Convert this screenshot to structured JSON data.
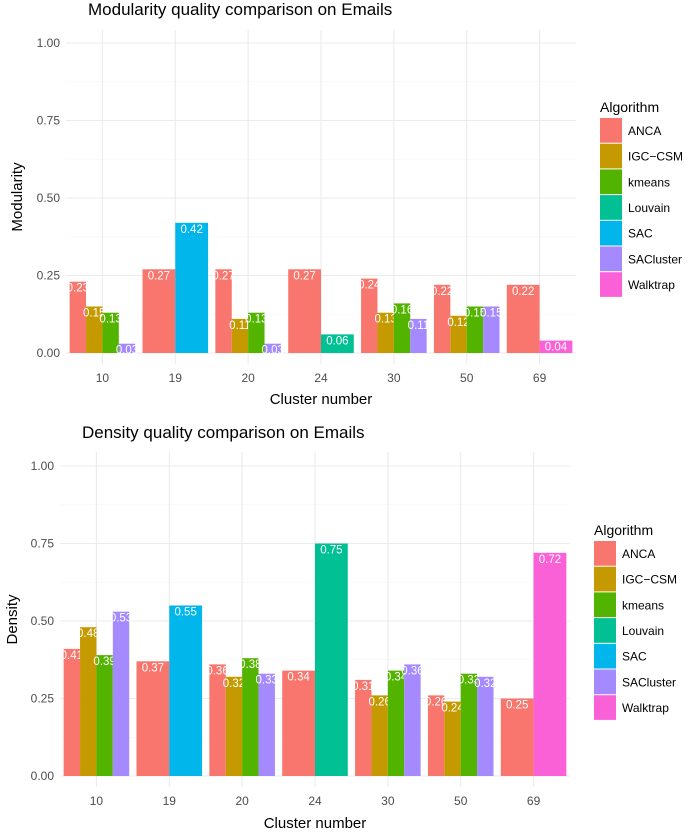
{
  "chart_data": [
    {
      "type": "bar",
      "title": "Modularity quality comparison on Emails",
      "xlabel": "Cluster number",
      "ylabel": "Modularity",
      "ylim": [
        0,
        1
      ],
      "yticks": [
        "0.00",
        "0.25",
        "0.50",
        "0.75",
        "1.00"
      ],
      "categories": [
        "10",
        "19",
        "20",
        "24",
        "30",
        "50",
        "69"
      ],
      "legend_title": "Algorithm",
      "legend_position": "right",
      "grid": true,
      "series": [
        {
          "name": "ANCA",
          "color": "#F8766D",
          "values": [
            0.23,
            0.27,
            0.27,
            0.27,
            0.24,
            0.22,
            0.22
          ],
          "labels": [
            "0.23",
            "0.27",
            "0.27",
            "0.27",
            "0.24",
            "0.22",
            "0.22"
          ]
        },
        {
          "name": "IGC−CSM",
          "color": "#C49A00",
          "values": [
            0.15,
            null,
            0.11,
            null,
            0.13,
            0.12,
            null
          ],
          "labels": [
            "0.15",
            null,
            "0.11",
            null,
            "0.13",
            "0.12",
            null
          ]
        },
        {
          "name": "kmeans",
          "color": "#53B400",
          "values": [
            0.13,
            null,
            0.13,
            null,
            0.16,
            0.15,
            null
          ],
          "labels": [
            "0.13",
            null,
            "0.13",
            null,
            "0.16",
            "0.15",
            null
          ]
        },
        {
          "name": "Louvain",
          "color": "#00C094",
          "values": [
            null,
            null,
            null,
            0.06,
            null,
            null,
            null
          ],
          "labels": [
            null,
            null,
            null,
            "0.06",
            null,
            null,
            null
          ]
        },
        {
          "name": "SAC",
          "color": "#00B6EB",
          "values": [
            null,
            0.42,
            null,
            null,
            null,
            null,
            null
          ],
          "labels": [
            null,
            "0.42",
            null,
            null,
            null,
            null,
            null
          ]
        },
        {
          "name": "SACluster",
          "color": "#A58AFF",
          "values": [
            0.03,
            null,
            0.03,
            null,
            0.11,
            0.15,
            null
          ],
          "labels": [
            "0.03",
            null,
            "0.03",
            null,
            "0.11",
            "0.15",
            null
          ]
        },
        {
          "name": "Walktrap",
          "color": "#FB61D7",
          "values": [
            null,
            null,
            null,
            null,
            null,
            null,
            0.04
          ],
          "labels": [
            null,
            null,
            null,
            null,
            null,
            null,
            "0.04"
          ]
        }
      ]
    },
    {
      "type": "bar",
      "title": "Density quality comparison on Emails",
      "xlabel": "Cluster number",
      "ylabel": "Density",
      "ylim": [
        0,
        1
      ],
      "yticks": [
        "0.00",
        "0.25",
        "0.50",
        "0.75",
        "1.00"
      ],
      "categories": [
        "10",
        "19",
        "20",
        "24",
        "30",
        "50",
        "69"
      ],
      "legend_title": "Algorithm",
      "legend_position": "right",
      "grid": true,
      "series": [
        {
          "name": "ANCA",
          "color": "#F8766D",
          "values": [
            0.41,
            0.37,
            0.36,
            0.34,
            0.31,
            0.26,
            0.25
          ],
          "labels": [
            "0.41",
            "0.37",
            "0.36",
            "0.34",
            "0.31",
            "0.26",
            "0.25"
          ]
        },
        {
          "name": "IGC−CSM",
          "color": "#C49A00",
          "values": [
            0.48,
            null,
            0.32,
            null,
            0.26,
            0.24,
            null
          ],
          "labels": [
            "0.48",
            null,
            "0.32",
            null,
            "0.26",
            "0.24",
            null
          ]
        },
        {
          "name": "kmeans",
          "color": "#53B400",
          "values": [
            0.39,
            null,
            0.38,
            null,
            0.34,
            0.33,
            null
          ],
          "labels": [
            "0.39",
            null,
            "0.38",
            null,
            "0.34",
            "0.33",
            null
          ]
        },
        {
          "name": "Louvain",
          "color": "#00C094",
          "values": [
            null,
            null,
            null,
            0.75,
            null,
            null,
            null
          ],
          "labels": [
            null,
            null,
            null,
            "0.75",
            null,
            null,
            null
          ]
        },
        {
          "name": "SAC",
          "color": "#00B6EB",
          "values": [
            null,
            0.55,
            null,
            null,
            null,
            null,
            null
          ],
          "labels": [
            null,
            "0.55",
            null,
            null,
            null,
            null,
            null
          ]
        },
        {
          "name": "SACluster",
          "color": "#A58AFF",
          "values": [
            0.53,
            null,
            0.33,
            null,
            0.36,
            0.32,
            null
          ],
          "labels": [
            "0.53",
            null,
            "0.33",
            null,
            "0.36",
            "0.32",
            null
          ]
        },
        {
          "name": "Walktrap",
          "color": "#FB61D7",
          "values": [
            null,
            null,
            null,
            null,
            null,
            null,
            0.72
          ],
          "labels": [
            null,
            null,
            null,
            null,
            null,
            null,
            "0.72"
          ]
        }
      ]
    }
  ]
}
